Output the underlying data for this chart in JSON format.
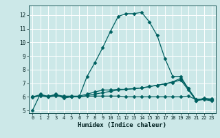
{
  "title": "",
  "xlabel": "Humidex (Indice chaleur)",
  "ylabel": "",
  "background_color": "#cce8e8",
  "grid_color": "#ffffff",
  "line_color": "#006060",
  "xlim": [
    -0.5,
    23.5
  ],
  "ylim": [
    4.8,
    12.7
  ],
  "yticks": [
    5,
    6,
    7,
    8,
    9,
    10,
    11,
    12
  ],
  "xticks": [
    0,
    1,
    2,
    3,
    4,
    5,
    6,
    7,
    8,
    9,
    10,
    11,
    12,
    13,
    14,
    15,
    16,
    17,
    18,
    19,
    20,
    21,
    22,
    23
  ],
  "series": [
    {
      "x": [
        0,
        1,
        2,
        3,
        4,
        5,
        6,
        7,
        8,
        9,
        10,
        11,
        12,
        13,
        14,
        15,
        16,
        17,
        18,
        19,
        20,
        21,
        22,
        23
      ],
      "y": [
        5.0,
        6.2,
        6.0,
        6.2,
        5.9,
        6.0,
        6.0,
        7.5,
        8.5,
        9.6,
        10.8,
        11.9,
        12.1,
        12.1,
        12.2,
        11.5,
        10.5,
        8.8,
        7.5,
        7.5,
        6.6,
        5.7,
        5.9,
        5.8
      ]
    },
    {
      "x": [
        0,
        1,
        2,
        3,
        4,
        5,
        6,
        7,
        8,
        9,
        10,
        11,
        12,
        13,
        14,
        15,
        16,
        17,
        18,
        19,
        20,
        21,
        22,
        23
      ],
      "y": [
        6.0,
        6.15,
        6.05,
        6.15,
        6.05,
        6.05,
        6.05,
        6.2,
        6.35,
        6.5,
        6.5,
        6.55,
        6.55,
        6.6,
        6.65,
        6.75,
        6.85,
        6.95,
        7.1,
        7.35,
        6.6,
        5.8,
        5.85,
        5.75
      ]
    },
    {
      "x": [
        0,
        1,
        2,
        3,
        4,
        5,
        6,
        7,
        8,
        9,
        10,
        11,
        12,
        13,
        14,
        15,
        16,
        17,
        18,
        19,
        20,
        21,
        22,
        23
      ],
      "y": [
        6.0,
        6.05,
        6.0,
        6.05,
        6.0,
        6.0,
        6.0,
        6.05,
        6.05,
        6.05,
        6.05,
        6.05,
        6.0,
        6.0,
        6.0,
        6.0,
        6.0,
        6.0,
        6.0,
        6.0,
        6.05,
        5.8,
        5.85,
        5.85
      ]
    },
    {
      "x": [
        0,
        1,
        2,
        3,
        4,
        5,
        6,
        7,
        8,
        9,
        10,
        11,
        12,
        13,
        14,
        15,
        16,
        17,
        18,
        19,
        20,
        21,
        22,
        23
      ],
      "y": [
        5.95,
        6.1,
        6.0,
        6.1,
        6.0,
        6.0,
        6.0,
        6.1,
        6.2,
        6.3,
        6.4,
        6.5,
        6.55,
        6.6,
        6.65,
        6.75,
        6.85,
        6.95,
        7.05,
        7.25,
        6.5,
        5.72,
        5.8,
        5.7
      ]
    }
  ]
}
